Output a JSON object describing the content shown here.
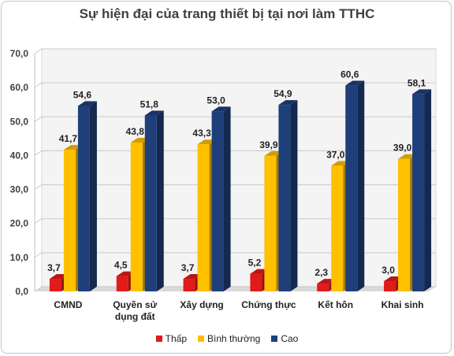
{
  "chart_data": {
    "type": "bar",
    "title": "Sự hiện đại của trang thiết bị tại nơi làm TTHC",
    "categories": [
      "CMND",
      "Quyền sử dụng đất",
      "Xây dựng",
      "Chứng thực",
      "Kết hôn",
      "Khai sinh"
    ],
    "category_lines": [
      [
        "CMND"
      ],
      [
        "Quyền sử",
        "dụng đất"
      ],
      [
        "Xây dựng"
      ],
      [
        "Chứng thực"
      ],
      [
        "Kết hôn"
      ],
      [
        "Khai sinh"
      ]
    ],
    "series": [
      {
        "name": "Thấp",
        "color": "#e11a1a",
        "values": [
          3.7,
          4.5,
          3.7,
          5.2,
          2.3,
          3.0
        ],
        "labels": [
          "3,7",
          "4,5",
          "3,7",
          "5,2",
          "2,3",
          "3,0"
        ]
      },
      {
        "name": "Bình thường",
        "color": "#ffc000",
        "values": [
          41.7,
          43.8,
          43.3,
          39.9,
          37.0,
          39.0
        ],
        "labels": [
          "41,7",
          "43,8",
          "43,3",
          "39,9",
          "37,0",
          "39,0"
        ]
      },
      {
        "name": "Cao",
        "color": "#1f3f7a",
        "values": [
          54.6,
          51.8,
          53.0,
          54.9,
          60.6,
          58.1
        ],
        "labels": [
          "54,6",
          "51,8",
          "53,0",
          "54,9",
          "60,6",
          "58,1"
        ]
      }
    ],
    "ylim": [
      0,
      70
    ],
    "y_ticks": [
      "0,0",
      "10,0",
      "20,0",
      "30,0",
      "40,0",
      "50,0",
      "60,0",
      "70,0"
    ],
    "grid": true,
    "legend_position": "bottom"
  }
}
